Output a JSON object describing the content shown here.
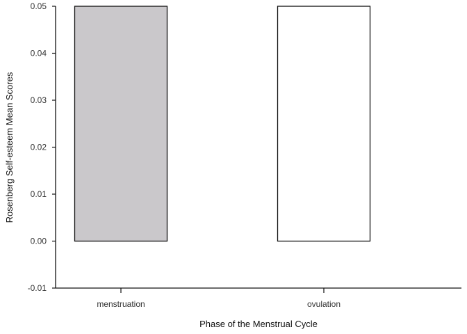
{
  "chart_data": {
    "type": "bar",
    "xlabel": "Phase of the Menstrual Cycle",
    "ylabel": "Rosenberg Self-esteem Mean Scores",
    "categories": [
      "menstruation",
      "ovulation"
    ],
    "values": [
      0.05,
      0.05
    ],
    "ylim": [
      -0.01,
      0.05
    ],
    "yticks": [
      "-0.01",
      "0.00",
      "0.01",
      "0.02",
      "0.03",
      "0.04",
      "0.05"
    ],
    "bar_colors": [
      "#cac8cb",
      "#ffffff"
    ],
    "bar_stroke": "#111111",
    "grid": false,
    "legend": "none"
  }
}
